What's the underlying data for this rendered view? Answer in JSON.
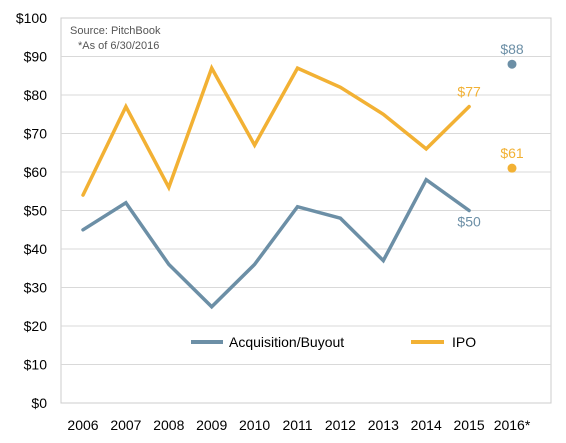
{
  "chart_data": {
    "type": "line",
    "title": "",
    "xlabel": "",
    "ylabel": "",
    "categories": [
      "2006",
      "2007",
      "2008",
      "2009",
      "2010",
      "2011",
      "2012",
      "2013",
      "2014",
      "2015",
      "2016*"
    ],
    "ylim": [
      0,
      100
    ],
    "yticks": [
      0,
      10,
      20,
      30,
      40,
      50,
      60,
      70,
      80,
      90,
      100
    ],
    "ytick_labels": [
      "$0",
      "$10",
      "$20",
      "$30",
      "$40",
      "$50",
      "$60",
      "$70",
      "$80",
      "$90",
      "$100"
    ],
    "grid": true,
    "legend_position": "bottom-center",
    "series": [
      {
        "name": "Acquisition/Buyout",
        "color": "#6c8fa6",
        "values": [
          45,
          52,
          36,
          25,
          36,
          51,
          48,
          37,
          58,
          50,
          null
        ],
        "point_2016": 88,
        "labels": [
          {
            "text": "$50",
            "category": "2015",
            "value": 50
          },
          {
            "text": "$88",
            "category": "2016*",
            "value": 88
          }
        ]
      },
      {
        "name": "IPO",
        "color": "#f2b134",
        "values": [
          54,
          77,
          56,
          87,
          67,
          87,
          82,
          75,
          66,
          77,
          null
        ],
        "point_2016": 61,
        "labels": [
          {
            "text": "$77",
            "category": "2015",
            "value": 77
          },
          {
            "text": "$61",
            "category": "2016*",
            "value": 61
          }
        ]
      }
    ],
    "annotations": {
      "source": "Source: PitchBook",
      "note": "*As of 6/30/2016"
    }
  }
}
